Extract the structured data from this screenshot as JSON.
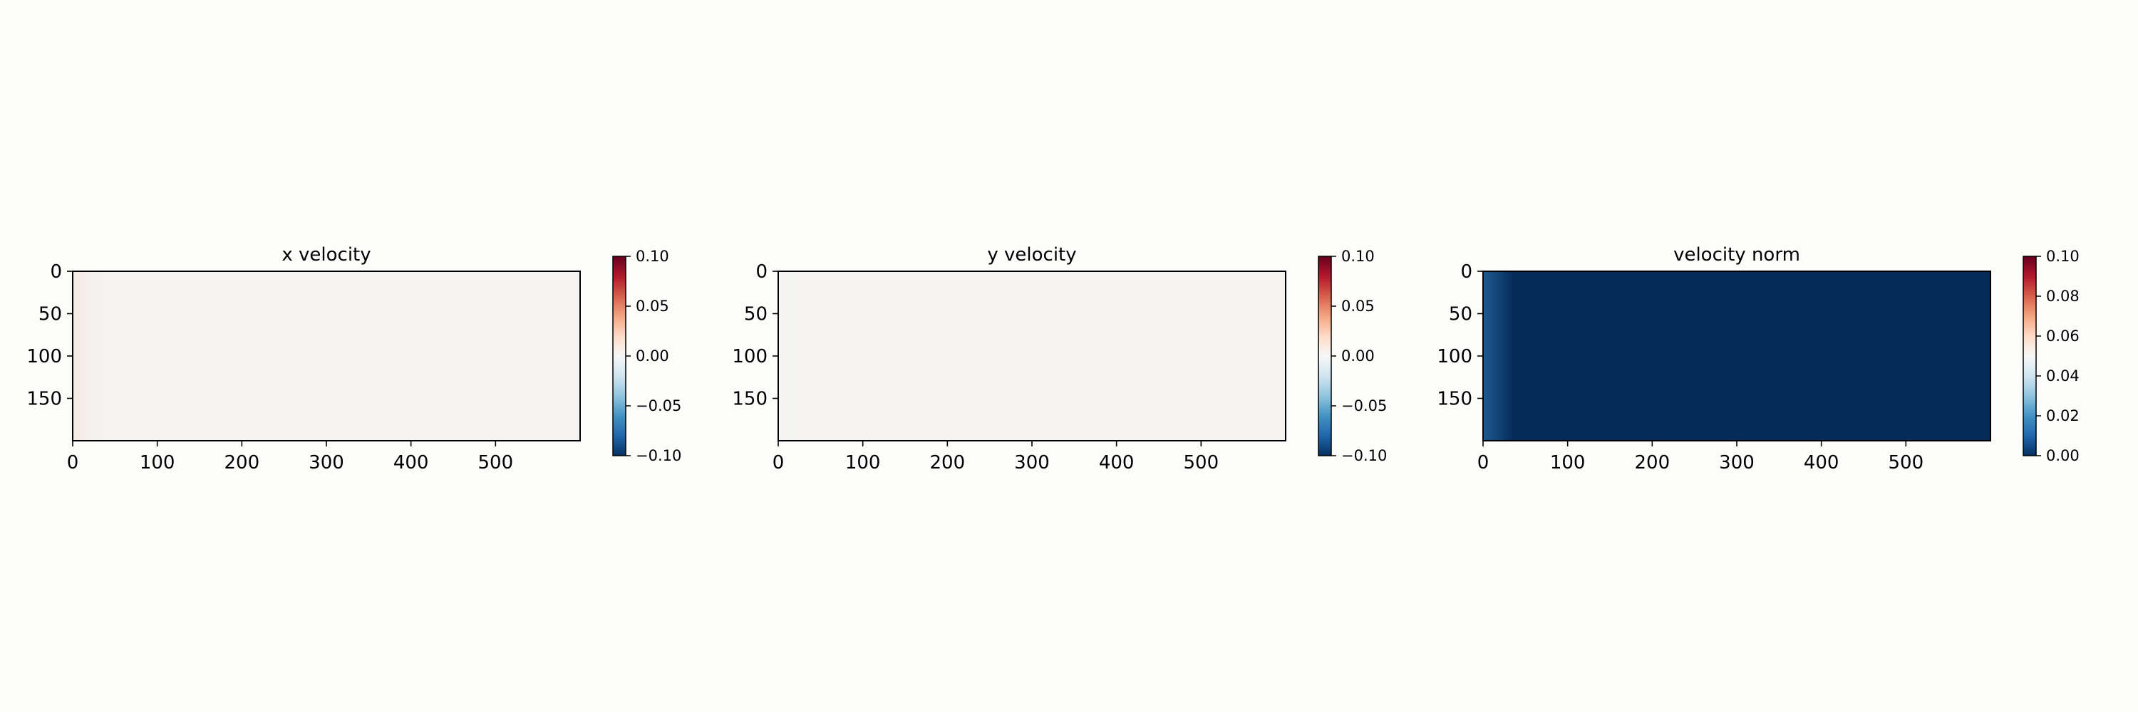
{
  "chart_data": [
    {
      "type": "heatmap",
      "title": "x velocity",
      "x_ticks": [
        0,
        100,
        200,
        300,
        400,
        500
      ],
      "y_ticks": [
        0,
        50,
        100,
        150
      ],
      "xlim": [
        0,
        600
      ],
      "ylim": [
        200,
        0
      ],
      "colormap": "RdBu_r",
      "colorbar": {
        "min": -0.1,
        "max": 0.1,
        "ticks": [
          "−0.10",
          "−0.05",
          "0.00",
          "0.05",
          "0.10"
        ]
      },
      "field": {
        "base_color": "#f4f3f2",
        "left_edge_color": "#f6ebe4",
        "grid": "none"
      }
    },
    {
      "type": "heatmap",
      "title": "y velocity",
      "x_ticks": [
        0,
        100,
        200,
        300,
        400,
        500
      ],
      "y_ticks": [
        0,
        50,
        100,
        150
      ],
      "xlim": [
        0,
        600
      ],
      "ylim": [
        200,
        0
      ],
      "colormap": "RdBu_r",
      "colorbar": {
        "min": -0.1,
        "max": 0.1,
        "ticks": [
          "−0.10",
          "−0.05",
          "0.00",
          "0.05",
          "0.10"
        ]
      },
      "field": {
        "base_color": "#f4f3f2",
        "left_edge_color": "#f5f4f3",
        "grid": "none"
      }
    },
    {
      "type": "heatmap",
      "title": "velocity norm",
      "x_ticks": [
        0,
        100,
        200,
        300,
        400,
        500
      ],
      "y_ticks": [
        0,
        50,
        100,
        150
      ],
      "xlim": [
        0,
        600
      ],
      "ylim": [
        200,
        0
      ],
      "colormap": "RdBu_r",
      "colorbar": {
        "min": 0,
        "max": 0.1,
        "ticks": [
          "0.00",
          "0.02",
          "0.04",
          "0.06",
          "0.08",
          "0.10"
        ]
      },
      "field": {
        "base_color": "#062b5a",
        "left_edge_color": "#1d5a93",
        "grid": "none"
      }
    }
  ],
  "colors": {
    "cmap_stops": [
      "#053061",
      "#2166ac",
      "#4393c3",
      "#92c5de",
      "#d1e5f0",
      "#f7f7f7",
      "#fddbc7",
      "#f4a582",
      "#d6604d",
      "#b2182b",
      "#67001f"
    ]
  }
}
